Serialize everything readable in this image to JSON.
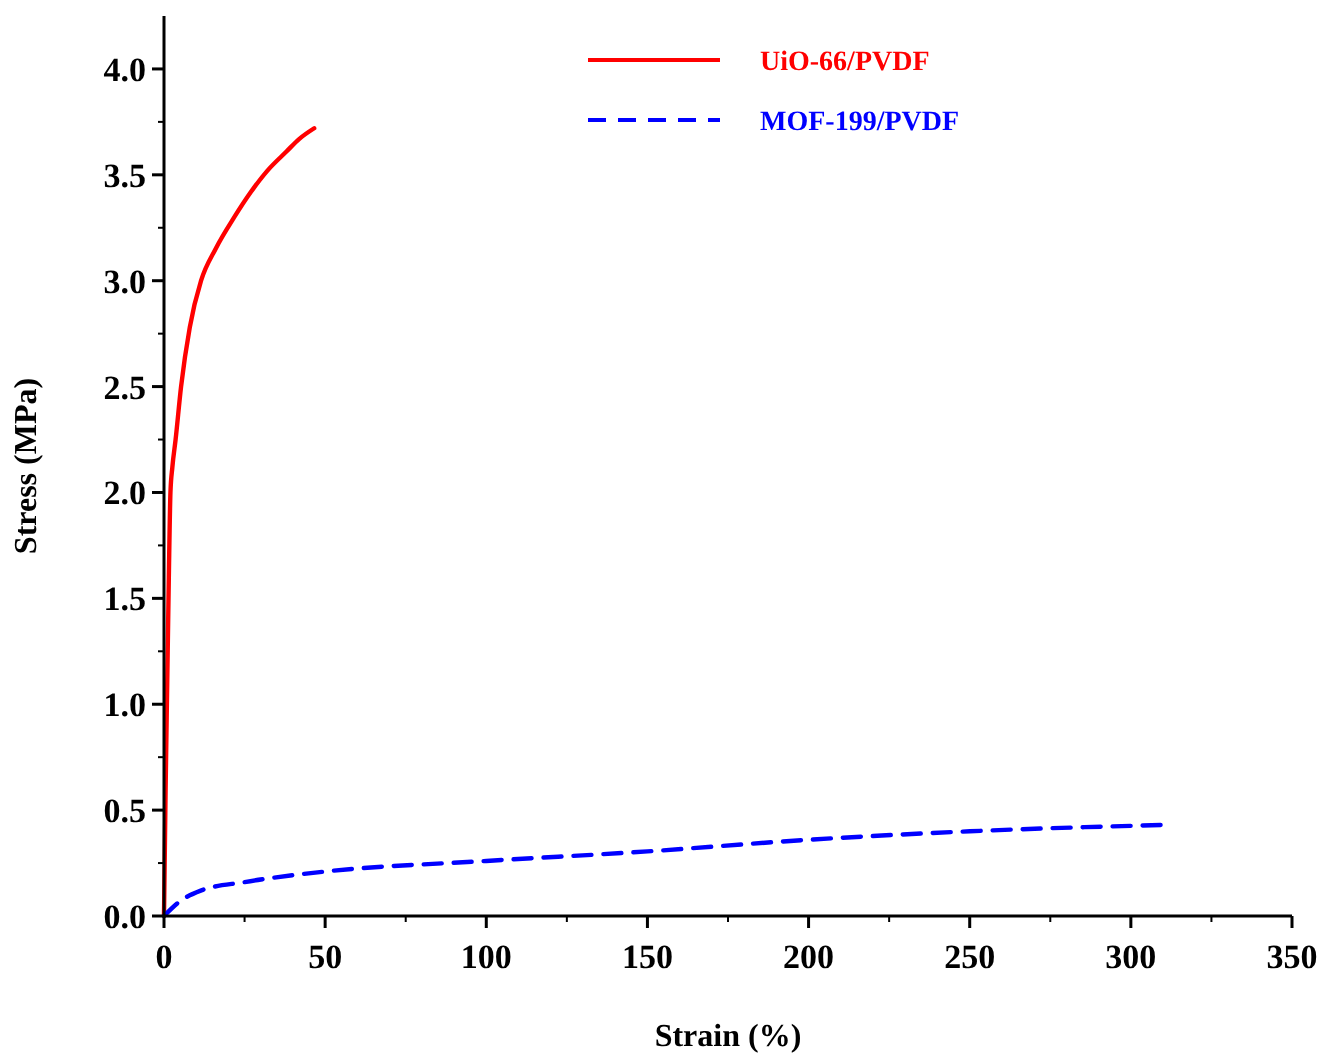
{
  "chart_data": {
    "type": "line",
    "xlabel": "Strain (%)",
    "ylabel": "Stress (MPa)",
    "xlim": [
      0,
      350
    ],
    "ylim": [
      0,
      4.25
    ],
    "xticks": [
      0,
      50,
      100,
      150,
      200,
      250,
      300,
      350
    ],
    "yticks": [
      {
        "value": 0,
        "label": "0.0"
      },
      {
        "value": 0.5,
        "label": "0.5"
      },
      {
        "value": 1,
        "label": "1.0"
      },
      {
        "value": 1.5,
        "label": "1.5"
      },
      {
        "value": 2,
        "label": "2.0"
      },
      {
        "value": 2.5,
        "label": "2.5"
      },
      {
        "value": 3,
        "label": "3.0"
      },
      {
        "value": 3.5,
        "label": "3.5"
      },
      {
        "value": 4,
        "label": "4.0"
      }
    ],
    "grid": false,
    "legend": "top right",
    "series": [
      {
        "name": "UiO-66/PVDF",
        "color": "#ff0000",
        "line_style": "solid",
        "x": [
          0,
          0.5,
          1,
          1.5,
          2,
          2.6,
          3.6,
          5.3,
          8,
          11.5,
          16,
          21.8,
          27,
          32.1,
          38,
          42,
          46.6
        ],
        "values": [
          0,
          0.6,
          1.1,
          1.6,
          2.0,
          2.12,
          2.25,
          2.5,
          2.78,
          3.0,
          3.15,
          3.3,
          3.42,
          3.52,
          3.61,
          3.67,
          3.72
        ]
      },
      {
        "name": "MOF-199/PVDF",
        "color": "#0000ff",
        "line_style": "dashed",
        "x": [
          0,
          5,
          11.4,
          25,
          50,
          100,
          150,
          200,
          250,
          309.9
        ],
        "values": [
          0,
          0.07,
          0.12,
          0.16,
          0.21,
          0.26,
          0.305,
          0.36,
          0.4,
          0.43
        ]
      }
    ]
  }
}
